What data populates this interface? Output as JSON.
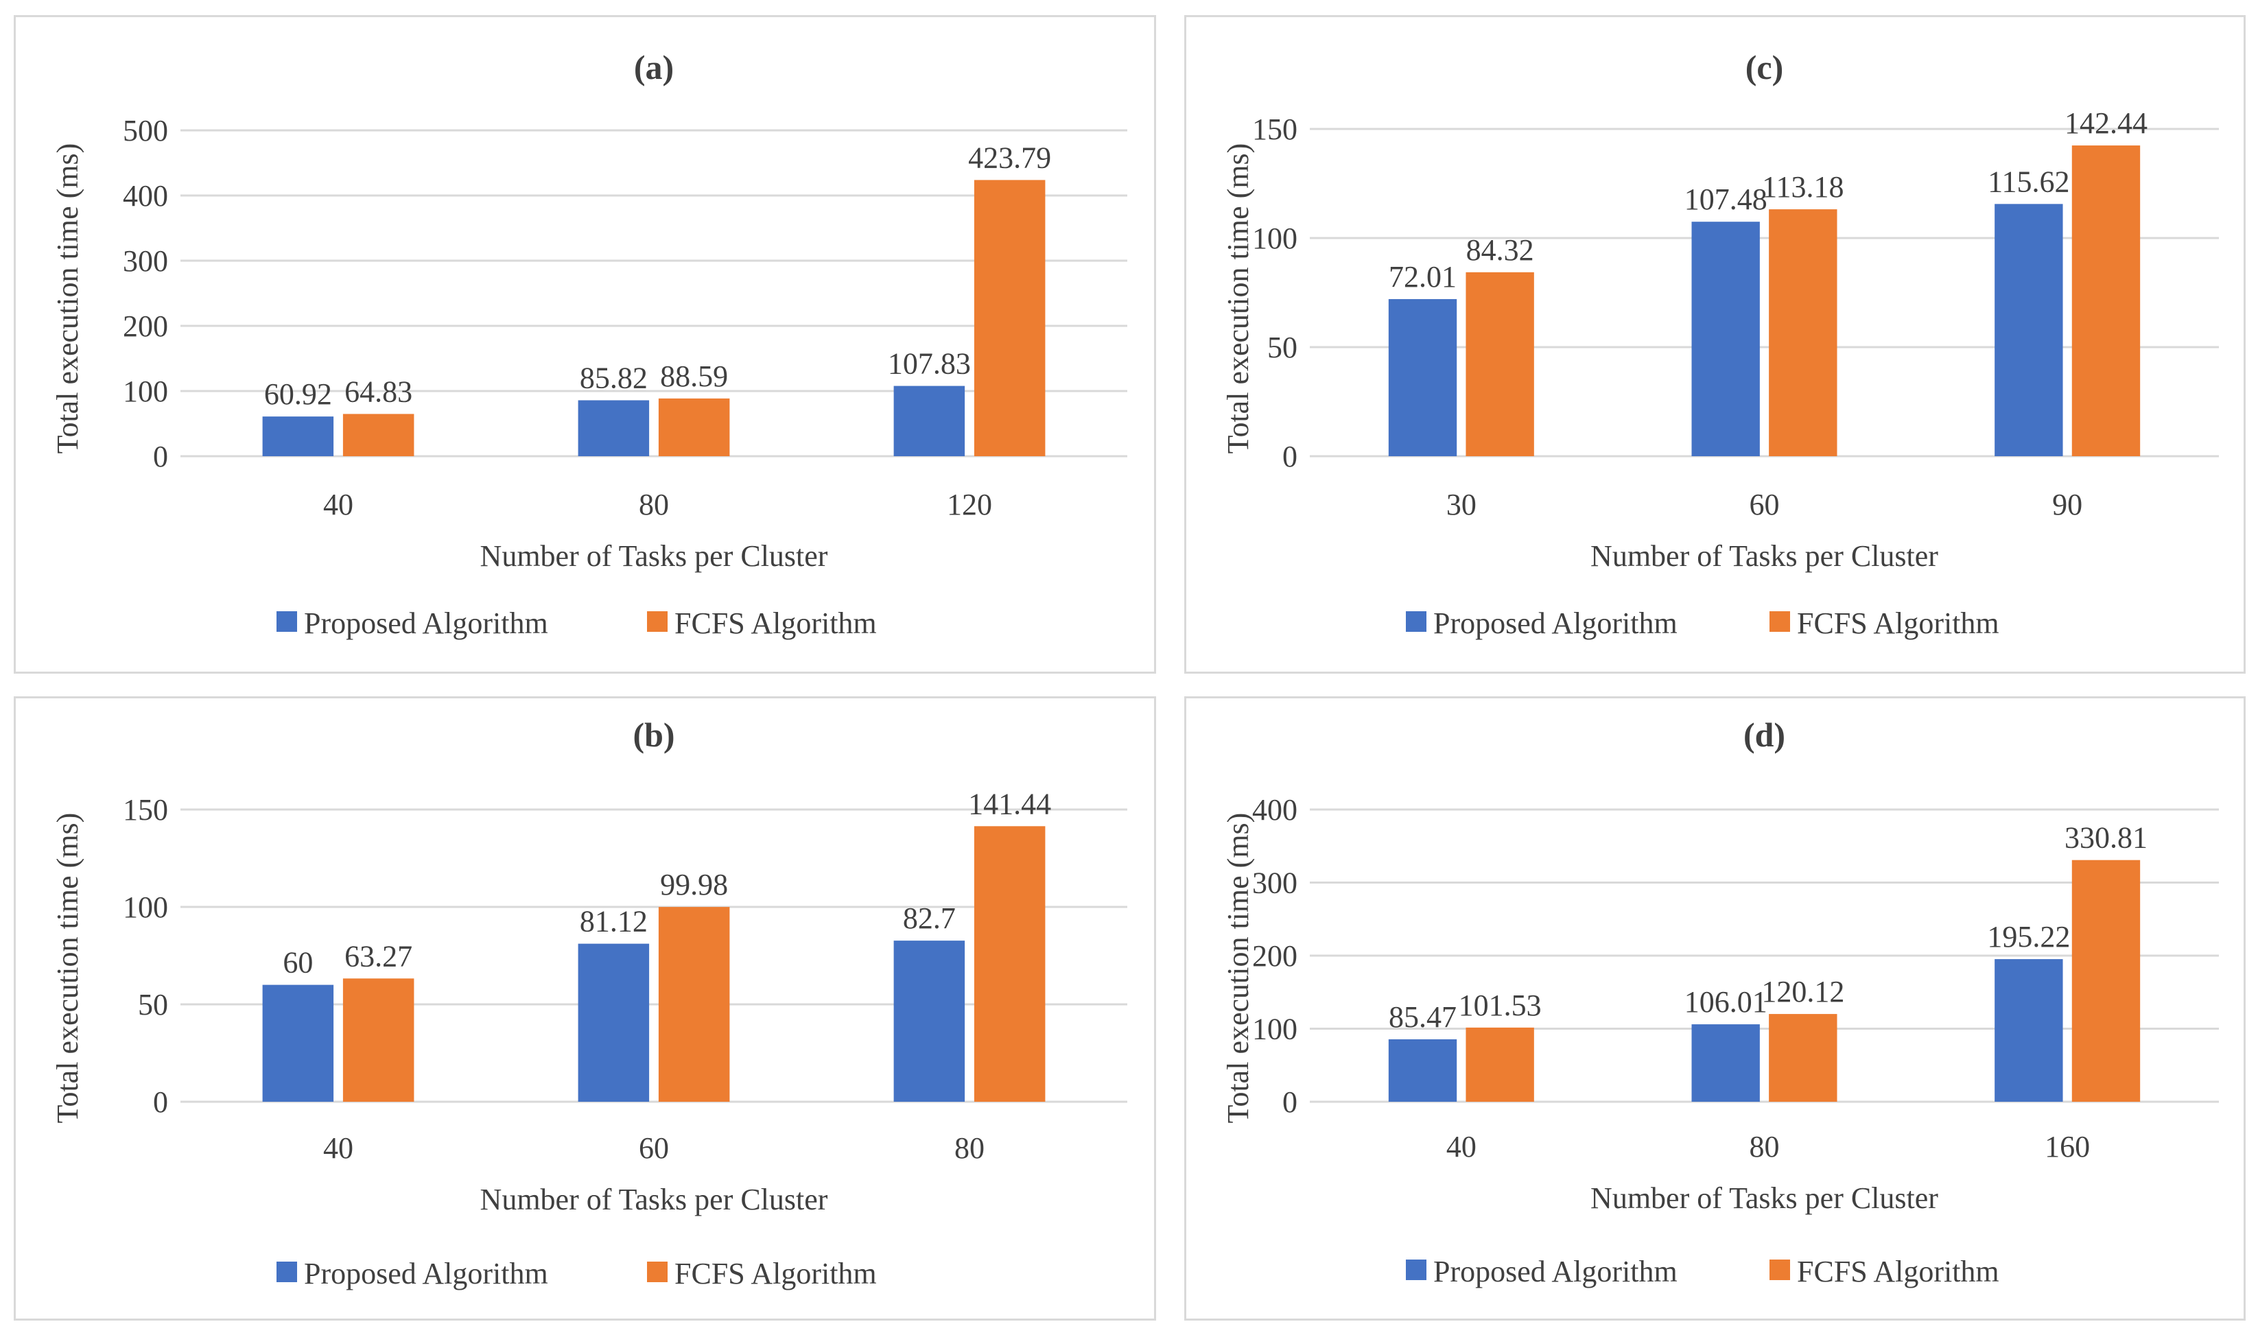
{
  "colors": {
    "proposed": "#4472C4",
    "fcfs": "#ED7D31",
    "grid": "#d9d9d9",
    "text": "#404040"
  },
  "chart_data": [
    {
      "id": "a",
      "type": "bar",
      "title": "(a)",
      "xlabel": "Number of Tasks per Cluster",
      "ylabel": "Total execution time (ms)",
      "categories": [
        "40",
        "80",
        "120"
      ],
      "ylim": [
        0,
        500
      ],
      "yticks": [
        0,
        100,
        200,
        300,
        400,
        500
      ],
      "legend_position": "bottom",
      "series": [
        {
          "name": "Proposed Algorithm",
          "values": [
            60.92,
            85.82,
            107.83
          ],
          "labels": [
            "60.92",
            "85.82",
            "107.83"
          ]
        },
        {
          "name": "FCFS Algorithm",
          "values": [
            64.83,
            88.59,
            423.79
          ],
          "labels": [
            "64.83",
            "88.59",
            "423.79"
          ]
        }
      ]
    },
    {
      "id": "c",
      "type": "bar",
      "title": "(c)",
      "xlabel": "Number of Tasks per Cluster",
      "ylabel": "Total execution time (ms)",
      "categories": [
        "30",
        "60",
        "90"
      ],
      "ylim": [
        0,
        150
      ],
      "yticks": [
        0,
        50,
        100,
        150
      ],
      "legend_position": "bottom",
      "series": [
        {
          "name": "Proposed Algorithm",
          "values": [
            72.01,
            107.48,
            115.62
          ],
          "labels": [
            "72.01",
            "107.48",
            "115.62"
          ]
        },
        {
          "name": "FCFS Algorithm",
          "values": [
            84.32,
            113.18,
            142.44
          ],
          "labels": [
            "84.32",
            "113.18",
            "142.44"
          ]
        }
      ]
    },
    {
      "id": "b",
      "type": "bar",
      "title": "(b)",
      "xlabel": "Number of Tasks per Cluster",
      "ylabel": "Total execution time (ms)",
      "categories": [
        "40",
        "60",
        "80"
      ],
      "ylim": [
        0,
        150
      ],
      "yticks": [
        0,
        50,
        100,
        150
      ],
      "legend_position": "bottom",
      "series": [
        {
          "name": "Proposed Algorithm",
          "values": [
            60,
            81.12,
            82.7
          ],
          "labels": [
            "60",
            "81.12",
            "82.7"
          ]
        },
        {
          "name": "FCFS Algorithm",
          "values": [
            63.27,
            99.98,
            141.44
          ],
          "labels": [
            "63.27",
            "99.98",
            "141.44"
          ]
        }
      ]
    },
    {
      "id": "d",
      "type": "bar",
      "title": "(d)",
      "xlabel": "Number of Tasks per Cluster",
      "ylabel": "Total execution time (ms)",
      "categories": [
        "40",
        "80",
        "160"
      ],
      "ylim": [
        0,
        400
      ],
      "yticks": [
        0,
        100,
        200,
        300,
        400
      ],
      "legend_position": "bottom",
      "series": [
        {
          "name": "Proposed Algorithm",
          "values": [
            85.47,
            106.01,
            195.22
          ],
          "labels": [
            "85.47",
            "106.01",
            "195.22"
          ]
        },
        {
          "name": "FCFS Algorithm",
          "values": [
            101.53,
            120.12,
            330.81
          ],
          "labels": [
            "101.53",
            "120.12",
            "330.81"
          ]
        }
      ]
    }
  ]
}
